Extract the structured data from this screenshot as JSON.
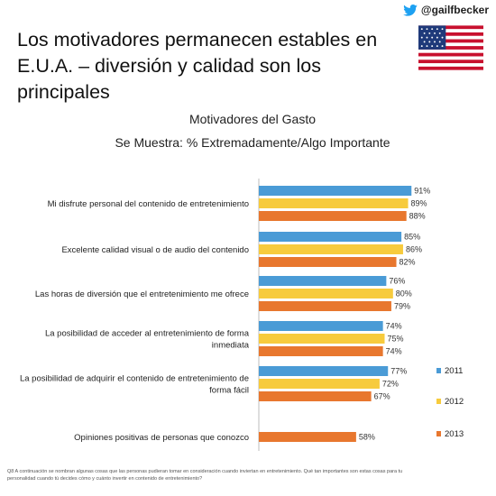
{
  "header": {
    "twitter_handle": "@gailfbecker",
    "icon": "twitter-bird-icon",
    "flag_icon": "us-flag-icon",
    "title": "Los motivadores permanecen estables en E.U.A. – diversión y calidad son los principales"
  },
  "chart_data": {
    "type": "bar",
    "orientation": "horizontal",
    "title": "Motivadores del Gasto",
    "subtitle": "Se Muestra: % Extremadamente/Algo Importante",
    "categories": [
      "Mi disfrute personal del contenido de entretenimiento",
      "Excelente calidad visual o de audio del contenido",
      "Las horas de diversión que el entretenimiento me ofrece",
      "La posibilidad de acceder al entretenimiento de forma inmediata",
      "La posibilidad de adquirir el contenido de entretenimiento de forma fácil",
      "Opiniones positivas de personas que conozco"
    ],
    "category_lines": [
      [
        "Mi disfrute personal del contenido de entretenimiento"
      ],
      [
        "Excelente calidad visual o de audio del contenido"
      ],
      [
        "Las horas de diversión que el entretenimiento me ofrece"
      ],
      [
        "La posibilidad de acceder al entretenimiento de forma",
        "inmediata"
      ],
      [
        "La posibilidad de adquirir el contenido de entretenimiento de",
        "forma fácil"
      ],
      [
        "Opiniones positivas de personas que conozco"
      ]
    ],
    "series": [
      {
        "name": "2011",
        "color": "#4a9bd6",
        "values": [
          91,
          85,
          76,
          74,
          77,
          null
        ]
      },
      {
        "name": "2012",
        "color": "#f7cb3d",
        "values": [
          89,
          86,
          80,
          75,
          72,
          null
        ]
      },
      {
        "name": "2013",
        "color": "#e8772e",
        "values": [
          88,
          82,
          79,
          74,
          67,
          58
        ]
      }
    ],
    "value_suffix": "%",
    "legend_position": "right",
    "grid": false
  },
  "footnote": "Q8 A continuación se nombran algunas cosas que las personas pudieran tomar en consideración cuando inviertan en entretenimiento. Qué tan importantes son estas cosas para tu personalidad cuando tú decides cómo y cuánto invertir en contenido de entretenimiento?"
}
